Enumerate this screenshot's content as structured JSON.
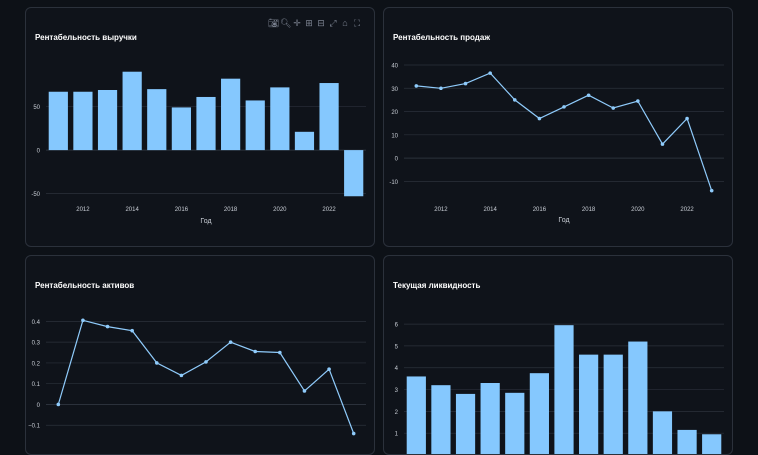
{
  "colors": {
    "bar": "#85c8fe",
    "line": "#8fcbfb",
    "grid": "#2b313b",
    "tick": "#c9ced6",
    "background": "#0f131a"
  },
  "modebar": {
    "icons": [
      "camera-icon",
      "zoom-icon",
      "pan-icon",
      "zoom-in-icon",
      "zoom-out-icon",
      "autoscale-icon",
      "home-icon",
      "reset-axes-icon"
    ]
  },
  "chart_data": [
    {
      "id": "revenue_profitability",
      "type": "bar",
      "title": "Рентабельность выручки",
      "xlabel": "Год",
      "ylabel": "",
      "x": [
        2011,
        2012,
        2013,
        2014,
        2015,
        2016,
        2017,
        2018,
        2019,
        2020,
        2021,
        2022,
        2023
      ],
      "values": [
        67,
        67,
        69,
        90,
        70,
        49,
        61,
        82,
        57,
        72,
        21,
        77,
        -53
      ],
      "xlim": [
        2010.5,
        2023.5
      ],
      "ylim": [
        -55,
        100
      ],
      "xticks": [
        2012,
        2014,
        2016,
        2018,
        2020,
        2022
      ],
      "yticks": [
        -50,
        0,
        50
      ],
      "grid": true
    },
    {
      "id": "sales_profitability",
      "type": "line",
      "title": "Рентабельность продаж",
      "xlabel": "Год",
      "ylabel": "",
      "x": [
        2011,
        2012,
        2013,
        2014,
        2015,
        2016,
        2017,
        2018,
        2019,
        2020,
        2021,
        2022,
        2023
      ],
      "values": [
        31,
        30,
        32,
        36.5,
        25,
        17,
        22,
        27,
        21.5,
        24.5,
        6,
        17,
        -14
      ],
      "xlim": [
        2010.5,
        2023.5
      ],
      "ylim": [
        -15,
        43
      ],
      "xticks": [
        2012,
        2014,
        2016,
        2018,
        2020,
        2022
      ],
      "yticks": [
        -10,
        0,
        10,
        20,
        30,
        40
      ],
      "grid": true
    },
    {
      "id": "asset_profitability",
      "type": "line",
      "title": "Рентабельность активов",
      "xlabel": "",
      "ylabel": "",
      "x": [
        2011,
        2012,
        2013,
        2014,
        2015,
        2016,
        2017,
        2018,
        2019,
        2020,
        2021,
        2022,
        2023
      ],
      "values": [
        0,
        0.405,
        0.375,
        0.355,
        0.2,
        0.14,
        0.205,
        0.3,
        0.255,
        0.25,
        0.065,
        0.17,
        -0.14
      ],
      "xlim": [
        2010.5,
        2023.5
      ],
      "ylim": [
        -0.2,
        0.45
      ],
      "xticks": [],
      "yticks": [
        -0.1,
        0,
        0.1,
        0.2,
        0.3,
        0.4
      ],
      "ytick_labels": [
        "−0.1",
        "0",
        "0.1",
        "0.2",
        "0.3",
        "0.4"
      ],
      "grid": true
    },
    {
      "id": "current_liquidity",
      "type": "bar",
      "title": "Текущая ликвидность",
      "xlabel": "",
      "ylabel": "",
      "x": [
        2011,
        2012,
        2013,
        2014,
        2015,
        2016,
        2017,
        2018,
        2019,
        2020,
        2021,
        2022,
        2023
      ],
      "values": [
        3.6,
        3.2,
        2.8,
        3.3,
        2.85,
        3.75,
        5.95,
        4.6,
        4.6,
        5.2,
        2.0,
        1.15,
        0.95
      ],
      "xlim": [
        2010.5,
        2023.5
      ],
      "ylim": [
        0,
        6.6
      ],
      "xticks": [],
      "yticks": [
        1,
        2,
        3,
        4,
        5,
        6
      ],
      "grid": true
    }
  ]
}
